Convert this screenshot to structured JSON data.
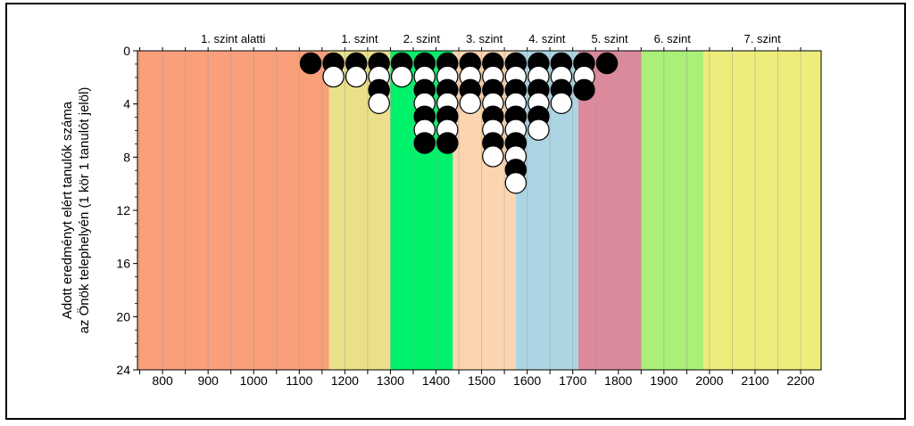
{
  "chart_data": {
    "type": "scatter",
    "title": "",
    "xlabel": "",
    "ylabel_lines": [
      "Adott eredményt elért tanulók száma",
      "az Önök telephelyén (1 kör 1 tanulót jelöl)"
    ],
    "xlim": [
      745,
      2245
    ],
    "ylim": [
      0,
      24
    ],
    "y_inverted": true,
    "grid": true,
    "x_ticks": [
      800,
      900,
      1000,
      1100,
      1200,
      1300,
      1400,
      1500,
      1600,
      1700,
      1800,
      1900,
      2000,
      2100,
      2200
    ],
    "y_ticks": [
      0,
      4,
      8,
      12,
      16,
      20,
      24
    ],
    "levels": [
      {
        "label": "1. szint alatti",
        "from": 745,
        "to": 1165,
        "color": "#f9a07a"
      },
      {
        "label": "1. szint",
        "from": 1165,
        "to": 1300,
        "color": "#eae08a"
      },
      {
        "label": "2. szint",
        "from": 1300,
        "to": 1437,
        "color": "#00f26a"
      },
      {
        "label": "3. szint",
        "from": 1437,
        "to": 1575,
        "color": "#fcd5b0"
      },
      {
        "label": "4. szint",
        "from": 1575,
        "to": 1712,
        "color": "#acd5e4"
      },
      {
        "label": "5. szint",
        "from": 1712,
        "to": 1850,
        "color": "#db8a9b"
      },
      {
        "label": "6. szint",
        "from": 1850,
        "to": 1987,
        "color": "#a9ef78"
      },
      {
        "label": "7. szint",
        "from": 1987,
        "to": 2245,
        "color": "#eded7c"
      }
    ],
    "series": [
      {
        "name": "",
        "points": [
          {
            "x": 1125,
            "count": 1
          },
          {
            "x": 1175,
            "count": 2
          },
          {
            "x": 1225,
            "count": 2
          },
          {
            "x": 1275,
            "count": 4
          },
          {
            "x": 1325,
            "count": 2
          },
          {
            "x": 1375,
            "count": 7
          },
          {
            "x": 1425,
            "count": 7
          },
          {
            "x": 1475,
            "count": 4
          },
          {
            "x": 1525,
            "count": 8
          },
          {
            "x": 1575,
            "count": 10
          },
          {
            "x": 1625,
            "count": 6
          },
          {
            "x": 1675,
            "count": 4
          },
          {
            "x": 1725,
            "count": 3
          },
          {
            "x": 1775,
            "count": 1
          }
        ]
      }
    ],
    "marker_colors": {
      "odd": "#000000",
      "even": "#ffffff"
    }
  }
}
